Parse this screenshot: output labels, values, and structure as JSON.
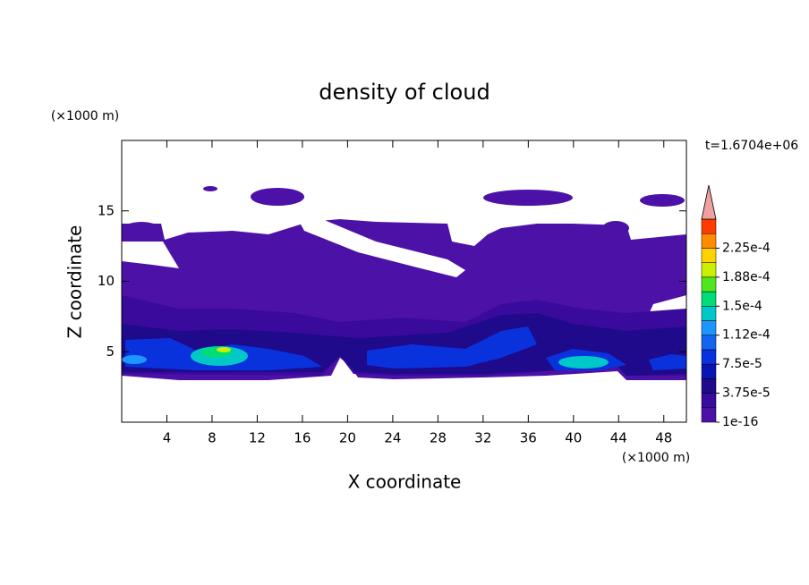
{
  "chart_data": {
    "type": "contour",
    "title": "density of cloud",
    "x_label": "X coordinate",
    "y_label": "Z coordinate",
    "x_unit": "(×1000 m)",
    "y_unit": "(×1000 m)",
    "time_label": "t=1.6704e+06",
    "xlim": [
      0,
      50
    ],
    "xticks": [
      4,
      8,
      12,
      16,
      20,
      24,
      28,
      32,
      36,
      40,
      44,
      48
    ],
    "ylim": [
      0,
      20
    ],
    "yticks": [
      5,
      10,
      15
    ],
    "colorbar": {
      "clim": [
        1e-16,
        0.0002625
      ],
      "ticks": [
        {
          "value": 1e-16,
          "label": "1e-16"
        },
        {
          "value": 3.75e-05,
          "label": "3.75e-5"
        },
        {
          "value": 7.5e-05,
          "label": "7.5e-5"
        },
        {
          "value": 0.0001125,
          "label": "1.12e-4"
        },
        {
          "value": 0.00015,
          "label": "1.5e-4"
        },
        {
          "value": 0.0001875,
          "label": "1.88e-4"
        },
        {
          "value": 0.000225,
          "label": "2.25e-4"
        }
      ],
      "colors": [
        "#4c12a8",
        "#3a0a9c",
        "#1e0a8a",
        "#0a14b4",
        "#0a32dc",
        "#1464f0",
        "#1e96ff",
        "#00c8c8",
        "#00dc78",
        "#50e61e",
        "#c8f000",
        "#ffd200",
        "#ff8c00",
        "#ff3c00"
      ],
      "extend_color": "#f0a0a0"
    }
  }
}
